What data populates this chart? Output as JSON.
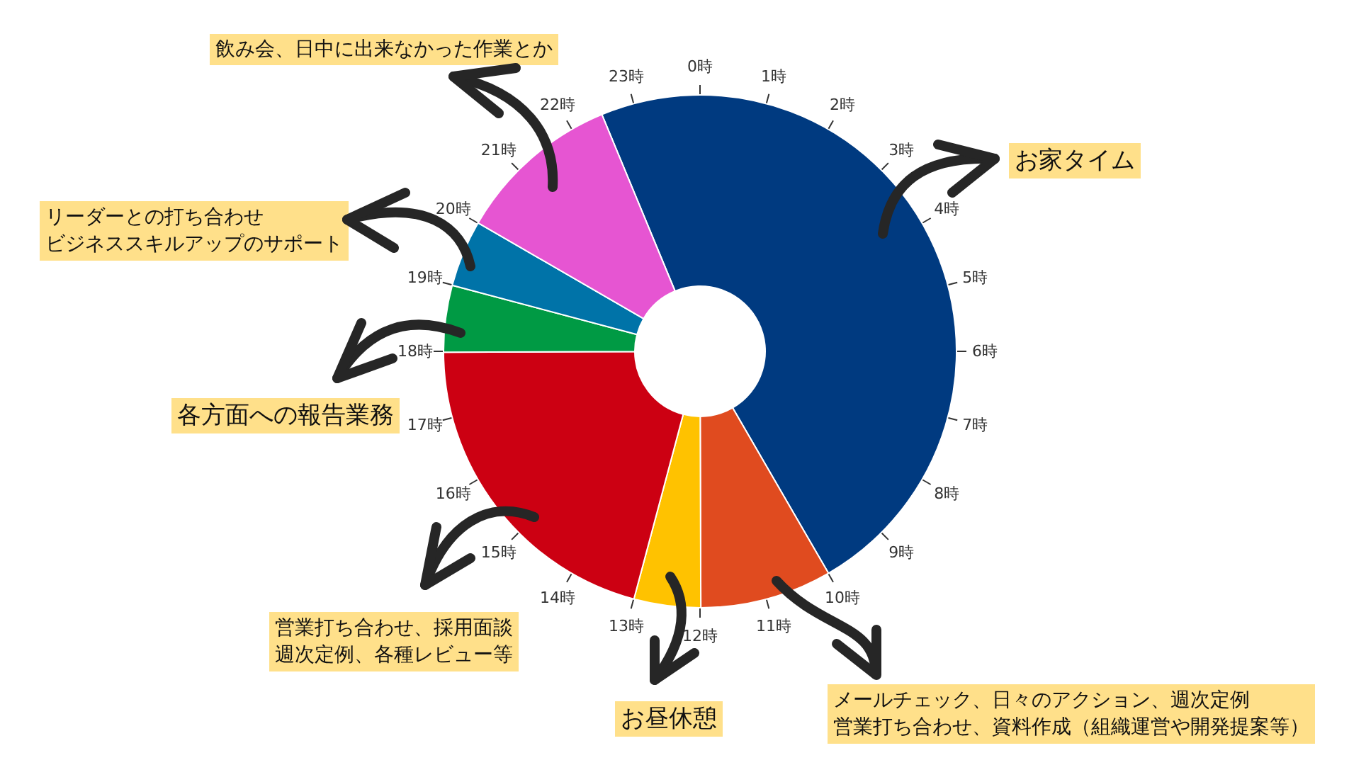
{
  "chart_data": {
    "type": "donut",
    "categories": [
      "お家タイム",
      "メールチェック、日々のアクション、週次定例営業打ち合わせ、資料作成（組織運営や開発提案等）",
      "お昼休憩",
      "営業打ち合わせ、採用面談週次定例、各種レビュー等",
      "各方面への報告業務",
      "リーダーとの打ち合わせビジネススキルアップのサポート",
      "飲み会、日中に出来なかった作業とか"
    ],
    "values": [
      47.9,
      8.3,
      4.2,
      20.8,
      4.2,
      4.2,
      10.4
    ],
    "colors": [
      "#003a80",
      "#e04b1f",
      "#ffc200",
      "#cc0012",
      "#009a44",
      "#0073a8",
      "#e655d2"
    ],
    "annotations": [
      "0時",
      "1時",
      "2時",
      "3時",
      "4時",
      "5時",
      "6時",
      "7時",
      "8時",
      "9時",
      "10時",
      "11時",
      "12時",
      "13時",
      "14時",
      "15時",
      "16時",
      "17時",
      "18時",
      "19時",
      "20時",
      "21時",
      "22時",
      "23時"
    ]
  }
}
